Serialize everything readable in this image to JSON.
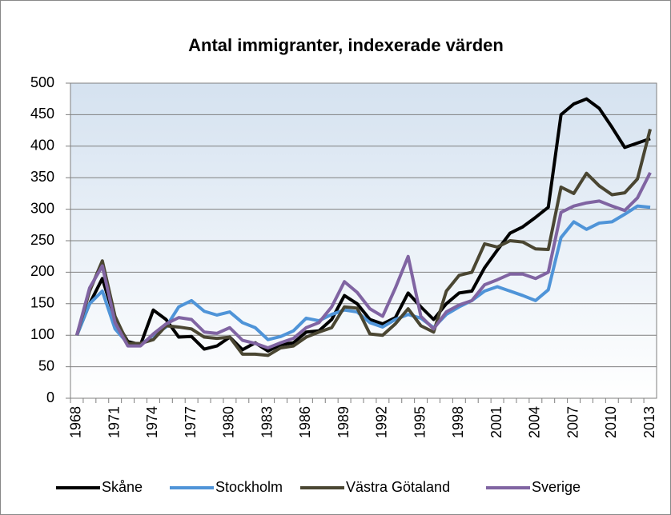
{
  "chart_data": {
    "type": "line",
    "title": "Antal immigranter, indexerade värden",
    "categories": [
      "1968",
      null,
      null,
      "1971",
      null,
      null,
      "1974",
      null,
      null,
      "1977",
      null,
      null,
      "1980",
      null,
      null,
      "1983",
      null,
      null,
      "1986",
      null,
      null,
      "1989",
      null,
      null,
      "1992",
      null,
      null,
      "1995",
      null,
      null,
      "1998",
      null,
      null,
      "2001",
      null,
      null,
      "2004",
      null,
      null,
      "2007",
      null,
      null,
      "2010",
      null,
      null,
      "2013"
    ],
    "series": [
      {
        "name": "Skåne",
        "color": "#000000",
        "values": [
          100,
          150,
          190,
          125,
          90,
          85,
          140,
          125,
          97,
          98,
          78,
          83,
          97,
          77,
          88,
          75,
          85,
          88,
          105,
          107,
          125,
          163,
          150,
          125,
          118,
          128,
          167,
          145,
          125,
          150,
          167,
          170,
          207,
          235,
          262,
          272,
          287,
          303,
          450,
          467,
          475,
          460,
          430,
          398,
          405,
          412
        ]
      },
      {
        "name": "Stockholm",
        "color": "#4f94d8",
        "values": [
          100,
          150,
          170,
          110,
          87,
          85,
          100,
          113,
          145,
          155,
          138,
          132,
          137,
          120,
          112,
          93,
          98,
          107,
          127,
          123,
          133,
          140,
          137,
          120,
          113,
          125,
          133,
          127,
          112,
          133,
          145,
          155,
          170,
          177,
          170,
          163,
          155,
          172,
          255,
          280,
          268,
          278,
          280,
          292,
          305,
          303
        ]
      },
      {
        "name": "Västra Götaland",
        "color": "#4a4632",
        "values": [
          100,
          170,
          218,
          130,
          87,
          87,
          93,
          115,
          113,
          110,
          97,
          95,
          97,
          70,
          70,
          68,
          80,
          83,
          97,
          105,
          112,
          145,
          143,
          102,
          100,
          118,
          142,
          115,
          105,
          170,
          195,
          200,
          245,
          240,
          250,
          248,
          237,
          236,
          335,
          325,
          357,
          337,
          323,
          326,
          348,
          427
        ]
      },
      {
        "name": "Sverige",
        "color": "#8064a2",
        "values": [
          100,
          175,
          210,
          120,
          83,
          83,
          102,
          118,
          128,
          125,
          105,
          103,
          112,
          92,
          87,
          80,
          88,
          95,
          112,
          120,
          145,
          185,
          168,
          142,
          130,
          175,
          225,
          130,
          110,
          137,
          148,
          155,
          180,
          188,
          197,
          197,
          190,
          200,
          295,
          305,
          310,
          313,
          305,
          298,
          318,
          358
        ]
      }
    ],
    "ylim": [
      0,
      500
    ],
    "yticks": [
      0,
      50,
      100,
      150,
      200,
      250,
      300,
      350,
      400,
      450,
      500
    ],
    "grid": true,
    "legend": "bottom"
  }
}
